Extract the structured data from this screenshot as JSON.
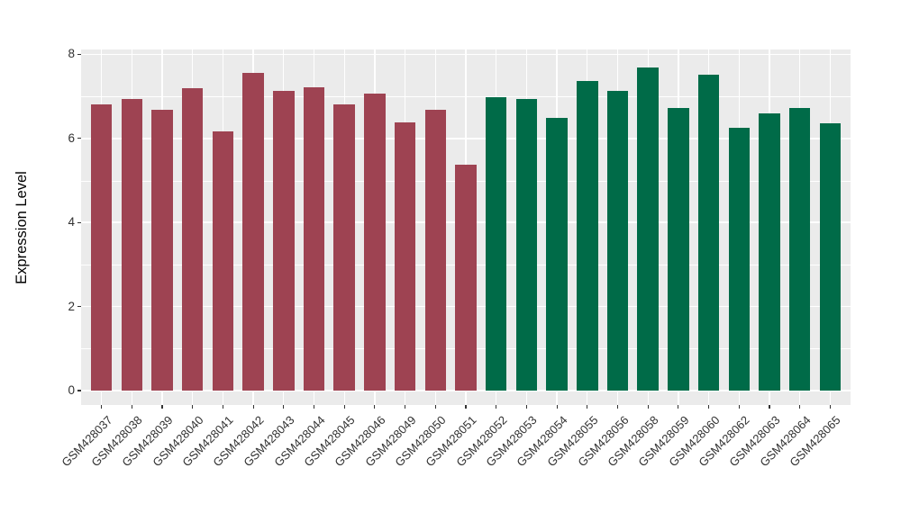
{
  "figure": {
    "background_color": "#FFFFFF",
    "panel_background_color": "#EBEBEB",
    "gridline_color": "#FFFFFF",
    "tick_color": "#333333",
    "axis_text_color": "#303030"
  },
  "chart_data": {
    "type": "bar",
    "title": "",
    "xlabel": "",
    "ylabel": "Expression Level",
    "ylim": [
      0,
      8
    ],
    "yticks_major": [
      0,
      2,
      4,
      6,
      8
    ],
    "yticks_minor": [
      1,
      3,
      5,
      7
    ],
    "grid": "horizontal major+minor and vertical per-category white gridlines on gray panel",
    "legend_position": "none",
    "x_label_rotation_deg": 45,
    "categories": [
      "GSM428037",
      "GSM428038",
      "GSM428039",
      "GSM428040",
      "GSM428041",
      "GSM428042",
      "GSM428043",
      "GSM428044",
      "GSM428045",
      "GSM428046",
      "GSM428049",
      "GSM428050",
      "GSM428051",
      "GSM428052",
      "GSM428053",
      "GSM428054",
      "GSM428055",
      "GSM428056",
      "GSM428058",
      "GSM428059",
      "GSM428060",
      "GSM428062",
      "GSM428063",
      "GSM428064",
      "GSM428065"
    ],
    "values": [
      6.82,
      6.93,
      6.68,
      7.2,
      6.16,
      7.55,
      7.13,
      7.22,
      6.82,
      7.06,
      6.38,
      6.68,
      5.37,
      6.98,
      6.94,
      6.48,
      7.37,
      7.14,
      7.68,
      6.73,
      7.51,
      6.25,
      6.6,
      6.73,
      6.36
    ],
    "bar_groups": [
      1,
      1,
      1,
      1,
      1,
      1,
      1,
      1,
      1,
      1,
      1,
      1,
      1,
      2,
      2,
      2,
      2,
      2,
      2,
      2,
      2,
      2,
      2,
      2,
      2
    ],
    "group_colors": {
      "1": "#9E4352",
      "2": "#006B48"
    }
  }
}
